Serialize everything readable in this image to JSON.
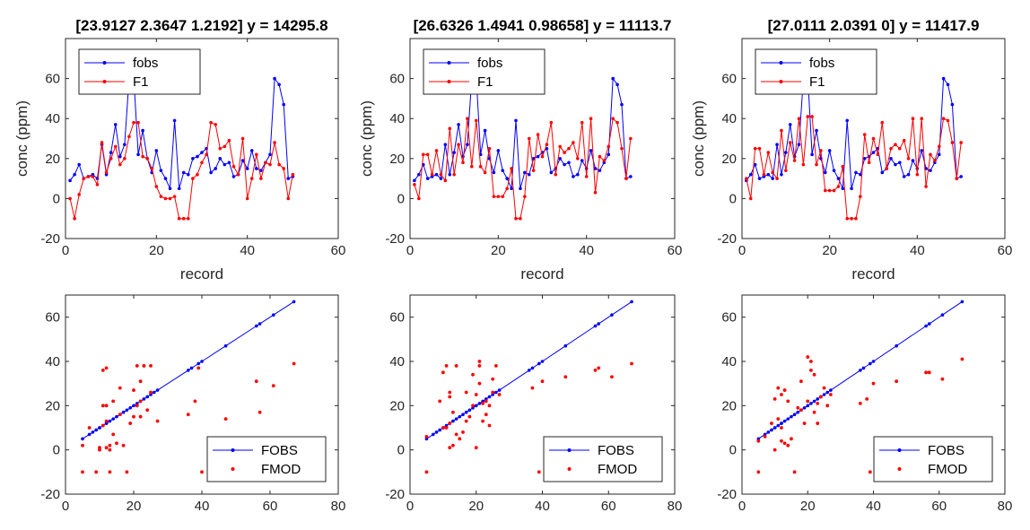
{
  "colors": {
    "fobs": "#0000ff",
    "fmod": "#ff0000",
    "axis": "#262626"
  },
  "chart_data": [
    {
      "type": "line",
      "title": "[23.9127 2.3647 1.2192]  y = 14295.8",
      "xlabel": "record",
      "ylabel": "conc (ppm)",
      "xlim": [
        0,
        60
      ],
      "ylim": [
        -20,
        80
      ],
      "xticks": [
        0,
        20,
        40,
        60
      ],
      "yticks": [
        -20,
        0,
        20,
        40,
        60
      ],
      "legend_position": "top-left",
      "x": [
        1,
        2,
        3,
        4,
        5,
        6,
        7,
        8,
        9,
        10,
        11,
        12,
        13,
        14,
        15,
        16,
        17,
        18,
        19,
        20,
        21,
        22,
        23,
        24,
        25,
        26,
        27,
        28,
        29,
        30,
        31,
        32,
        33,
        34,
        35,
        36,
        37,
        38,
        39,
        40,
        41,
        42,
        43,
        44,
        45,
        46,
        47,
        48,
        49,
        50
      ],
      "series": [
        {
          "name": "fobs",
          "values": [
            9,
            12,
            17,
            10,
            11,
            12,
            10,
            27,
            12,
            23,
            37,
            21,
            27,
            60,
            61,
            22,
            34,
            20,
            13,
            24,
            14,
            10,
            5,
            39,
            5,
            13,
            12,
            20,
            21,
            23,
            25,
            13,
            15,
            20,
            17,
            18,
            11,
            12,
            19,
            15,
            24,
            15,
            14,
            18,
            22,
            60,
            57,
            47,
            10,
            11
          ]
        },
        {
          "name": "F1",
          "values": [
            0,
            -10,
            2,
            10,
            11,
            11,
            7,
            28,
            13,
            20,
            26,
            17,
            20,
            31,
            38,
            38,
            21,
            20,
            15,
            6,
            1,
            0,
            0,
            1,
            -10,
            -10,
            -10,
            10,
            12,
            18,
            22,
            38,
            37,
            25,
            26,
            29,
            16,
            12,
            30,
            0,
            10,
            22,
            10,
            18,
            17,
            28,
            17,
            15,
            0,
            12
          ]
        }
      ]
    },
    {
      "type": "line",
      "title": "[26.6326 1.4941 0.98658]  y = 11113.7",
      "xlabel": "record",
      "ylabel": "conc (ppm)",
      "xlim": [
        0,
        60
      ],
      "ylim": [
        -20,
        80
      ],
      "xticks": [
        0,
        20,
        40,
        60
      ],
      "yticks": [
        -20,
        0,
        20,
        40,
        60
      ],
      "legend_position": "top-left",
      "x": [
        1,
        2,
        3,
        4,
        5,
        6,
        7,
        8,
        9,
        10,
        11,
        12,
        13,
        14,
        15,
        16,
        17,
        18,
        19,
        20,
        21,
        22,
        23,
        24,
        25,
        26,
        27,
        28,
        29,
        30,
        31,
        32,
        33,
        34,
        35,
        36,
        37,
        38,
        39,
        40,
        41,
        42,
        43,
        44,
        45,
        46,
        47,
        48,
        49,
        50
      ],
      "series": [
        {
          "name": "fobs",
          "values": [
            9,
            12,
            17,
            10,
            11,
            12,
            10,
            27,
            12,
            23,
            37,
            21,
            27,
            60,
            61,
            22,
            34,
            20,
            13,
            24,
            14,
            10,
            5,
            39,
            5,
            13,
            12,
            20,
            21,
            23,
            25,
            13,
            15,
            20,
            17,
            18,
            11,
            12,
            19,
            15,
            24,
            15,
            14,
            18,
            22,
            60,
            57,
            47,
            10,
            11
          ]
        },
        {
          "name": "F1",
          "values": [
            7,
            0,
            22,
            22,
            12,
            24,
            12,
            9,
            35,
            12,
            27,
            18,
            40,
            16,
            39,
            16,
            13,
            25,
            1,
            1,
            1,
            5,
            15,
            -10,
            -10,
            1,
            30,
            14,
            32,
            21,
            27,
            38,
            12,
            26,
            23,
            25,
            28,
            20,
            38,
            11,
            40,
            3,
            21,
            19,
            26,
            40,
            38,
            25,
            10,
            30
          ]
        }
      ]
    },
    {
      "type": "line",
      "title": "[27.0111 2.0391 0]  y = 11417.9",
      "xlabel": "record",
      "ylabel": "conc (ppm)",
      "xlim": [
        0,
        60
      ],
      "ylim": [
        -20,
        80
      ],
      "xticks": [
        0,
        20,
        40,
        60
      ],
      "yticks": [
        -20,
        0,
        20,
        40,
        60
      ],
      "legend_position": "top-left",
      "x": [
        1,
        2,
        3,
        4,
        5,
        6,
        7,
        8,
        9,
        10,
        11,
        12,
        13,
        14,
        15,
        16,
        17,
        18,
        19,
        20,
        21,
        22,
        23,
        24,
        25,
        26,
        27,
        28,
        29,
        30,
        31,
        32,
        33,
        34,
        35,
        36,
        37,
        38,
        39,
        40,
        41,
        42,
        43,
        44,
        45,
        46,
        47,
        48,
        49,
        50
      ],
      "series": [
        {
          "name": "fobs",
          "values": [
            9,
            12,
            17,
            10,
            11,
            12,
            10,
            27,
            12,
            23,
            37,
            21,
            27,
            60,
            61,
            22,
            34,
            20,
            13,
            24,
            14,
            10,
            5,
            39,
            5,
            13,
            12,
            20,
            21,
            23,
            25,
            13,
            15,
            20,
            17,
            18,
            11,
            12,
            19,
            15,
            24,
            15,
            14,
            18,
            22,
            60,
            57,
            47,
            10,
            11
          ]
        },
        {
          "name": "F1",
          "values": [
            10,
            0,
            25,
            25,
            12,
            23,
            13,
            10,
            34,
            14,
            28,
            19,
            40,
            17,
            41,
            41,
            17,
            24,
            4,
            4,
            4,
            6,
            16,
            -10,
            -10,
            -10,
            1,
            32,
            18,
            30,
            22,
            38,
            15,
            25,
            27,
            25,
            29,
            20,
            40,
            12,
            40,
            6,
            22,
            19,
            26,
            40,
            39,
            28,
            10,
            28
          ]
        }
      ]
    },
    {
      "type": "scatter",
      "xlim": [
        0,
        80
      ],
      "ylim": [
        -20,
        70
      ],
      "xticks": [
        0,
        20,
        40,
        60,
        80
      ],
      "yticks": [
        -20,
        0,
        20,
        40,
        60
      ],
      "legend_position": "bottom-right",
      "series": [
        {
          "name": "FOBS",
          "x": [
            5,
            7,
            8,
            9,
            10,
            10,
            11,
            12,
            12,
            13,
            14,
            15,
            16,
            17,
            18,
            19,
            20,
            21,
            22,
            23,
            24,
            25,
            26,
            27,
            36,
            37,
            39,
            40,
            47,
            56,
            57,
            61,
            67
          ],
          "y": [
            5,
            7,
            8,
            9,
            10,
            10,
            11,
            12,
            12,
            13,
            14,
            15,
            16,
            17,
            18,
            19,
            20,
            21,
            22,
            23,
            24,
            25,
            26,
            27,
            36,
            37,
            39,
            40,
            47,
            56,
            57,
            61,
            67
          ]
        },
        {
          "name": "FMOD",
          "x": [
            5,
            5,
            7,
            9,
            10,
            10,
            11,
            11,
            11,
            12,
            12,
            12,
            12,
            13,
            13,
            13,
            14,
            14,
            15,
            16,
            16,
            17,
            18,
            19,
            20,
            20,
            21,
            21,
            22,
            22,
            22,
            23,
            23,
            24,
            25,
            25,
            27,
            36,
            38,
            39,
            40,
            47,
            56,
            57,
            61,
            67
          ],
          "y": [
            -10,
            2,
            10,
            -10,
            0,
            1,
            20,
            11,
            36,
            37,
            20,
            13,
            1,
            2,
            -10,
            0,
            7,
            22,
            3,
            28,
            16,
            2,
            -10,
            12,
            15,
            27,
            20,
            38,
            15,
            22,
            31,
            38,
            38,
            18,
            26,
            38,
            13,
            16,
            22,
            37,
            -10,
            14,
            31,
            17,
            29,
            39
          ]
        }
      ]
    },
    {
      "type": "scatter",
      "xlim": [
        0,
        80
      ],
      "ylim": [
        -20,
        70
      ],
      "xticks": [
        0,
        20,
        40,
        60,
        80
      ],
      "yticks": [
        -20,
        0,
        20,
        40,
        60
      ],
      "legend_position": "bottom-right",
      "series": [
        {
          "name": "FOBS",
          "x": [
            5,
            7,
            8,
            9,
            10,
            10,
            11,
            12,
            12,
            13,
            14,
            15,
            16,
            17,
            18,
            19,
            20,
            21,
            22,
            23,
            24,
            25,
            26,
            27,
            36,
            37,
            39,
            40,
            47,
            56,
            57,
            61,
            67
          ],
          "y": [
            5,
            7,
            8,
            9,
            10,
            10,
            11,
            12,
            12,
            13,
            14,
            15,
            16,
            17,
            18,
            19,
            20,
            21,
            22,
            23,
            24,
            25,
            26,
            27,
            36,
            37,
            39,
            40,
            47,
            56,
            57,
            61,
            67
          ]
        },
        {
          "name": "FMOD",
          "x": [
            5,
            5,
            9,
            10,
            10,
            11,
            11,
            12,
            12,
            12,
            12,
            13,
            13,
            14,
            14,
            15,
            16,
            17,
            17,
            18,
            19,
            19,
            20,
            20,
            21,
            21,
            21,
            22,
            22,
            23,
            23,
            24,
            24,
            25,
            25,
            26,
            27,
            37,
            39,
            40,
            47,
            56,
            57,
            61,
            67
          ],
          "y": [
            6,
            -10,
            22,
            10,
            35,
            38,
            10,
            24,
            26,
            12,
            1,
            17,
            2,
            7,
            38,
            5,
            8,
            13,
            26,
            15,
            20,
            34,
            1,
            25,
            40,
            38,
            30,
            21,
            13,
            22,
            16,
            11,
            20,
            26,
            32,
            38,
            25,
            28,
            -10,
            31,
            33,
            36,
            37,
            33,
            39
          ]
        }
      ]
    },
    {
      "type": "scatter",
      "xlim": [
        0,
        80
      ],
      "ylim": [
        -20,
        70
      ],
      "xticks": [
        0,
        20,
        40,
        60,
        80
      ],
      "yticks": [
        -20,
        0,
        20,
        40,
        60
      ],
      "legend_position": "bottom-right",
      "series": [
        {
          "name": "FOBS",
          "x": [
            5,
            7,
            8,
            9,
            10,
            10,
            11,
            12,
            12,
            13,
            14,
            15,
            16,
            17,
            18,
            19,
            20,
            21,
            22,
            23,
            24,
            25,
            26,
            27,
            36,
            37,
            39,
            40,
            47,
            56,
            57,
            61,
            67
          ],
          "y": [
            5,
            7,
            8,
            9,
            10,
            10,
            11,
            12,
            12,
            13,
            14,
            15,
            16,
            17,
            18,
            19,
            20,
            21,
            22,
            23,
            24,
            25,
            26,
            27,
            36,
            37,
            39,
            40,
            47,
            56,
            57,
            61,
            67
          ]
        },
        {
          "name": "FMOD",
          "x": [
            5,
            5,
            7,
            9,
            10,
            10,
            11,
            11,
            12,
            12,
            12,
            13,
            13,
            14,
            14,
            15,
            16,
            17,
            18,
            18,
            19,
            20,
            20,
            21,
            21,
            22,
            22,
            23,
            23,
            24,
            25,
            26,
            27,
            36,
            38,
            39,
            40,
            47,
            56,
            57,
            61,
            67
          ],
          "y": [
            4,
            -10,
            6,
            12,
            23,
            0,
            14,
            28,
            4,
            25,
            10,
            3,
            27,
            2,
            22,
            5,
            -10,
            19,
            18,
            31,
            12,
            42,
            22,
            40,
            36,
            34,
            17,
            12,
            21,
            24,
            28,
            20,
            25,
            21,
            23,
            -10,
            30,
            31,
            35,
            35,
            32,
            41
          ]
        }
      ]
    }
  ]
}
